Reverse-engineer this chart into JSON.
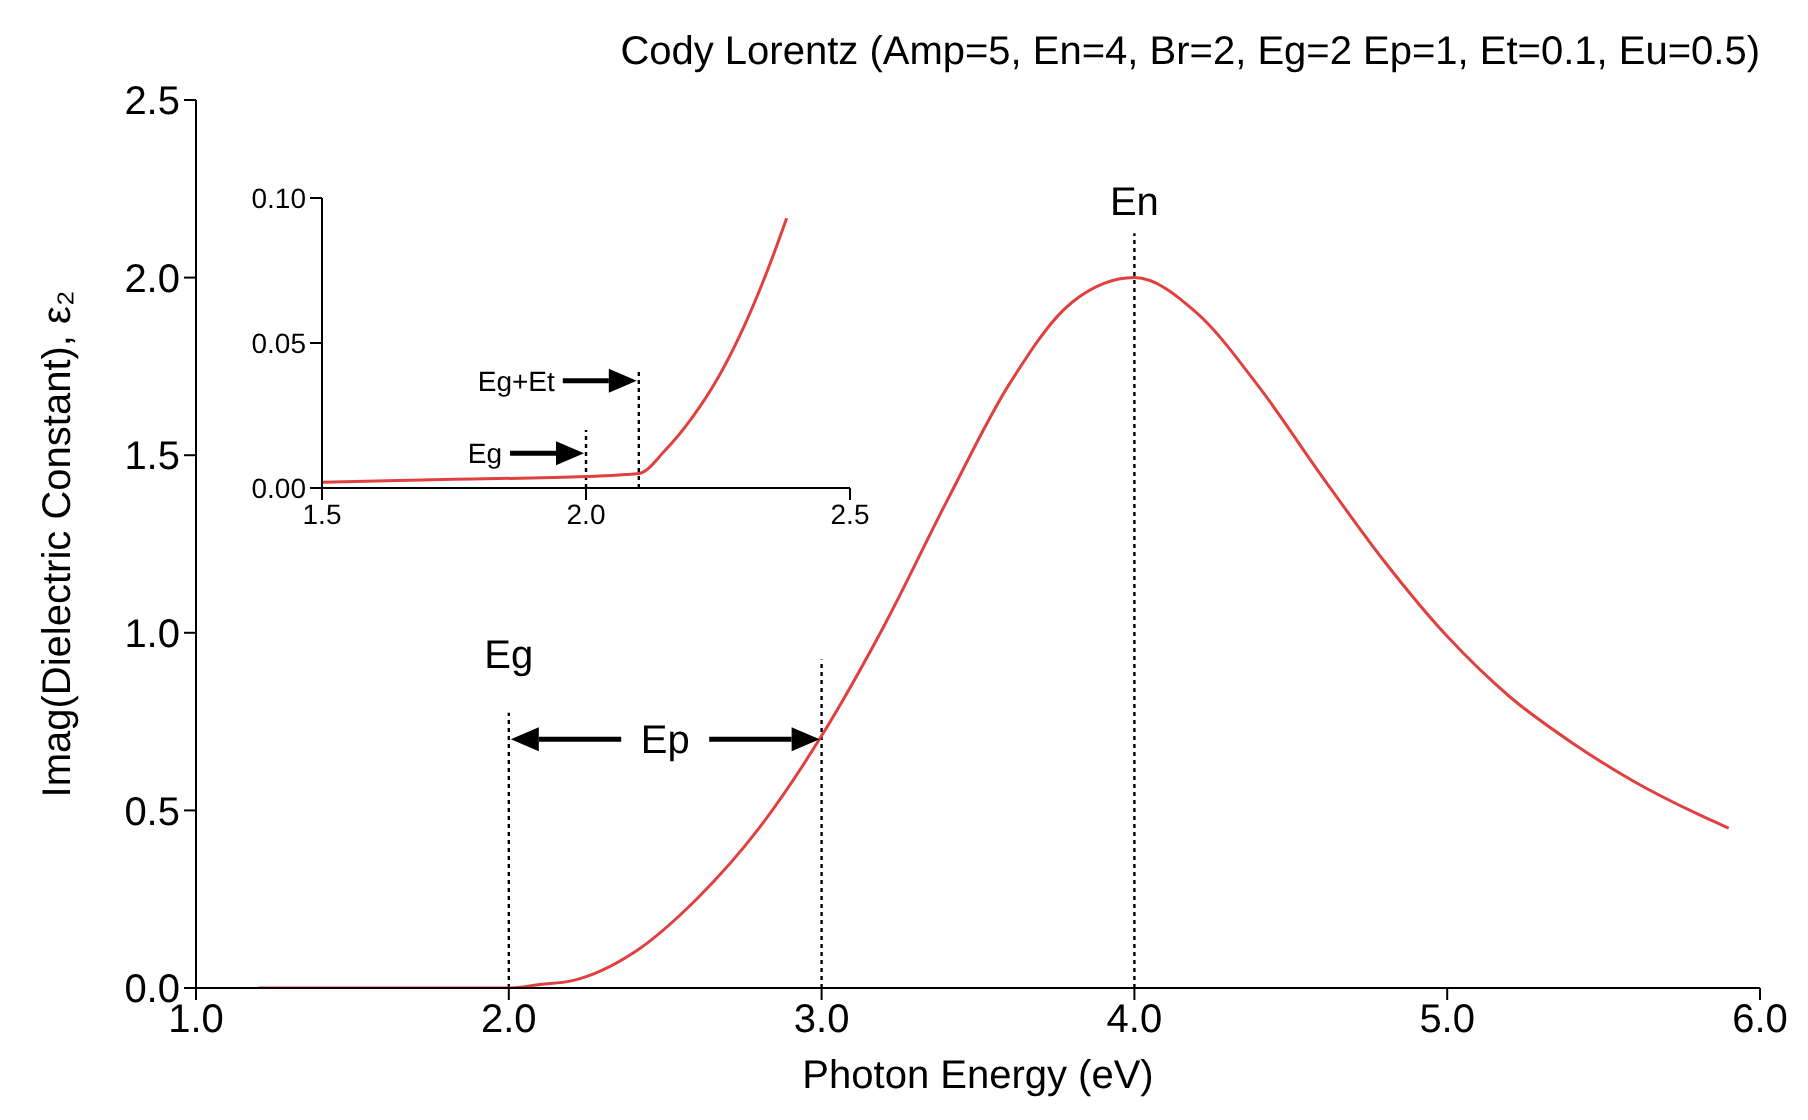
{
  "chart_data": [
    {
      "type": "line",
      "title": "Cody Lorentz (Amp=5, En=4, Br=2, Eg=2 Ep=1, Et=0.1, Eu=0.5)",
      "xlabel": "Photon Energy (eV)",
      "ylabel": "Imag(Dielectric Constant),  ε₂",
      "x": [
        1.2,
        1.6,
        2.0,
        2.1,
        2.2,
        2.4,
        2.6,
        2.8,
        3.0,
        3.2,
        3.4,
        3.6,
        3.8,
        4.0,
        4.2,
        4.4,
        4.6,
        4.8,
        5.0,
        5.2,
        5.4,
        5.6,
        5.8,
        5.9
      ],
      "series": [
        {
          "color": "#e0403f",
          "values": [
            0,
            0,
            0,
            0.01,
            0.02,
            0.1,
            0.25,
            0.45,
            0.71,
            1.02,
            1.37,
            1.7,
            1.93,
            2.0,
            1.9,
            1.69,
            1.44,
            1.2,
            0.99,
            0.82,
            0.69,
            0.58,
            0.49,
            0.45
          ]
        }
      ],
      "xlim": [
        1,
        6
      ],
      "xticks": [
        {
          "value": 1,
          "label": "1.0"
        },
        {
          "value": 2,
          "label": "2.0"
        },
        {
          "value": 3,
          "label": "3.0"
        },
        {
          "value": 4,
          "label": "4.0"
        },
        {
          "value": 5,
          "label": "5.0"
        },
        {
          "value": 6,
          "label": "6.0"
        }
      ],
      "ylim": [
        0,
        2.5
      ],
      "yticks": [
        {
          "value": 0,
          "label": "0.0"
        },
        0.5,
        {
          "value": 1,
          "label": "1.0"
        },
        1.5,
        {
          "value": 2,
          "label": "2.0"
        },
        2.5
      ],
      "ref_lines": [
        {
          "axis": "x",
          "value": 2,
          "color": "#000000",
          "line_style": "dotted"
        },
        {
          "axis": "x",
          "value": 3,
          "color": "#000000",
          "line_style": "dotted"
        },
        {
          "axis": "x",
          "value": 4,
          "color": "#000000",
          "line_style": "dotted"
        }
      ],
      "annotations": [
        "Eg",
        "Ep",
        "En"
      ],
      "marker": "none"
    },
    {
      "type": "line",
      "x": [
        1.5,
        1.75,
        2.0,
        2.1,
        2.15,
        2.2,
        2.25,
        2.3,
        2.35,
        2.38
      ],
      "series": [
        {
          "color": "#e0403f",
          "values": [
            0.002,
            0.003,
            0.004,
            0.005,
            0.013,
            0.024,
            0.038,
            0.056,
            0.078,
            0.093
          ]
        }
      ],
      "xlim": [
        1.5,
        2.5
      ],
      "xticks": [
        1.5,
        {
          "value": 2,
          "label": "2.0"
        },
        2.5
      ],
      "ylim": [
        0,
        0.1
      ],
      "yticks": [
        {
          "value": 0,
          "label": "0.00"
        },
        0.05,
        {
          "value": 0.1,
          "label": "0.10"
        }
      ],
      "ref_lines": [
        {
          "axis": "x",
          "value": 2,
          "color": "#000000",
          "line_style": "dotted"
        },
        {
          "axis": "x",
          "value": 2.1,
          "color": "#000000",
          "line_style": "dotted"
        }
      ],
      "annotations": [
        "Eg+Et",
        "Eg"
      ],
      "marker": "none"
    }
  ]
}
